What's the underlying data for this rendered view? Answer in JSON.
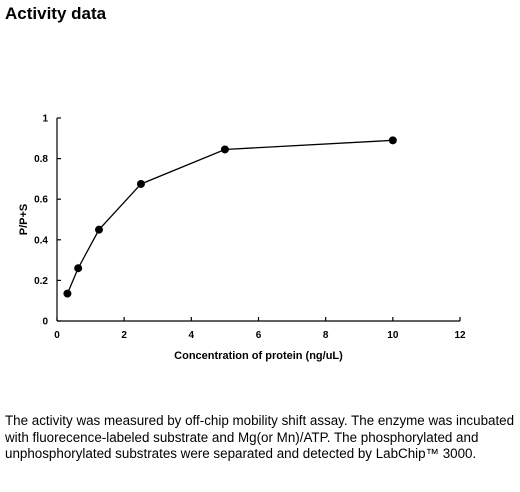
{
  "page": {
    "title": "Activity data",
    "caption": "The activity was measured by off-chip mobility shift assay. The enzyme was incubated with fluorecence-labeled  substrate and Mg(or Mn)/ATP. The phosphorylated and unphosphorylated substrates were separated and detected by LabChip™ 3000."
  },
  "chart_data": {
    "type": "line",
    "title": "",
    "xlabel": "Concentration of protein (ng/uL)",
    "ylabel": "P/P+S",
    "xlim": [
      0,
      12
    ],
    "ylim": [
      0,
      1
    ],
    "xticks": [
      0,
      2,
      4,
      6,
      8,
      10,
      12
    ],
    "yticks": [
      0,
      0.2,
      0.4,
      0.6,
      0.8,
      1
    ],
    "xtick_labels": [
      "0",
      "2",
      "4",
      "6",
      "8",
      "10",
      "12"
    ],
    "ytick_labels": [
      "0",
      "0.2",
      "0.4",
      "0.6",
      "0.8",
      "1"
    ],
    "grid": false,
    "series": [
      {
        "x": [
          0.31,
          0.63,
          1.25,
          2.5,
          5,
          10
        ],
        "y": [
          0.135,
          0.26,
          0.45,
          0.675,
          0.845,
          0.89
        ],
        "color": "#000000",
        "marker": "circle"
      }
    ]
  }
}
